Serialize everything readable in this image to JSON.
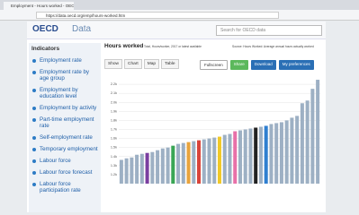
{
  "browser": {
    "tab_title": "Employment - Hours worked - OECD Data",
    "url": "https://data.oecd.org/emp/hours-worked.htm"
  },
  "header": {
    "logo": "OECD",
    "site": "Data",
    "search_placeholder": "Search for OECD data"
  },
  "sidebar": {
    "title": "Indicators",
    "items": [
      "Employment rate",
      "Employment rate by age group",
      "Employment by education level",
      "Employment by activity",
      "Part-time employment rate",
      "Self-employment rate",
      "Temporary employment",
      "Labour force",
      "Labour force forecast",
      "Labour force participation rate"
    ]
  },
  "main": {
    "title": "Hours worked",
    "note": "Total, Hours/worker, 2017 or latest available",
    "source": "Source: Hours Worked: Average annual hours actually worked",
    "tabs": [
      "Show",
      "Chart",
      "Map",
      "Table"
    ],
    "buttons": [
      "Fullscreen",
      "Share",
      "Download",
      "My preferences"
    ],
    "chart": {
      "type": "bar",
      "values": [
        1363,
        1380,
        1390,
        1420,
        1430,
        1440,
        1450,
        1470,
        1490,
        1500,
        1520,
        1540,
        1550,
        1560,
        1570,
        1580,
        1590,
        1600,
        1610,
        1620,
        1640,
        1650,
        1680,
        1690,
        1700,
        1710,
        1720,
        1730,
        1740,
        1760,
        1770,
        1780,
        1800,
        1830,
        1850,
        1990,
        2020,
        2150,
        2250
      ],
      "colors": [
        "#9db0c4",
        "#9db0c4",
        "#9db0c4",
        "#9db0c4",
        "#9db0c4",
        "#7b3fa0",
        "#9db0c4",
        "#9db0c4",
        "#9db0c4",
        "#9db0c4",
        "#3aa655",
        "#9db0c4",
        "#9db0c4",
        "#e8a33d",
        "#9db0c4",
        "#d9443a",
        "#9db0c4",
        "#9db0c4",
        "#9db0c4",
        "#f0c929",
        "#9db0c4",
        "#9db0c4",
        "#e870a8",
        "#9db0c4",
        "#9db0c4",
        "#9db0c4",
        "#222222",
        "#9db0c4",
        "#2f7fd0",
        "#9db0c4",
        "#9db0c4",
        "#9db0c4",
        "#9db0c4",
        "#9db0c4",
        "#9db0c4",
        "#9db0c4",
        "#9db0c4",
        "#9db0c4",
        "#9db0c4"
      ],
      "ylim": [
        1100,
        2300
      ],
      "yticks": [
        {
          "value": 1200,
          "label": "1.2k"
        },
        {
          "value": 1300,
          "label": "1.3k"
        },
        {
          "value": 1400,
          "label": "1.4k"
        },
        {
          "value": 1500,
          "label": "1.5k"
        },
        {
          "value": 1600,
          "label": "1.6k"
        },
        {
          "value": 1700,
          "label": "1.7k"
        },
        {
          "value": 1800,
          "label": "1.8k"
        },
        {
          "value": 1900,
          "label": "1.9k"
        },
        {
          "value": 2000,
          "label": "2.0k"
        },
        {
          "value": 2100,
          "label": "2.1k"
        },
        {
          "value": 2200,
          "label": "2.2k"
        }
      ],
      "grid": true
    }
  }
}
